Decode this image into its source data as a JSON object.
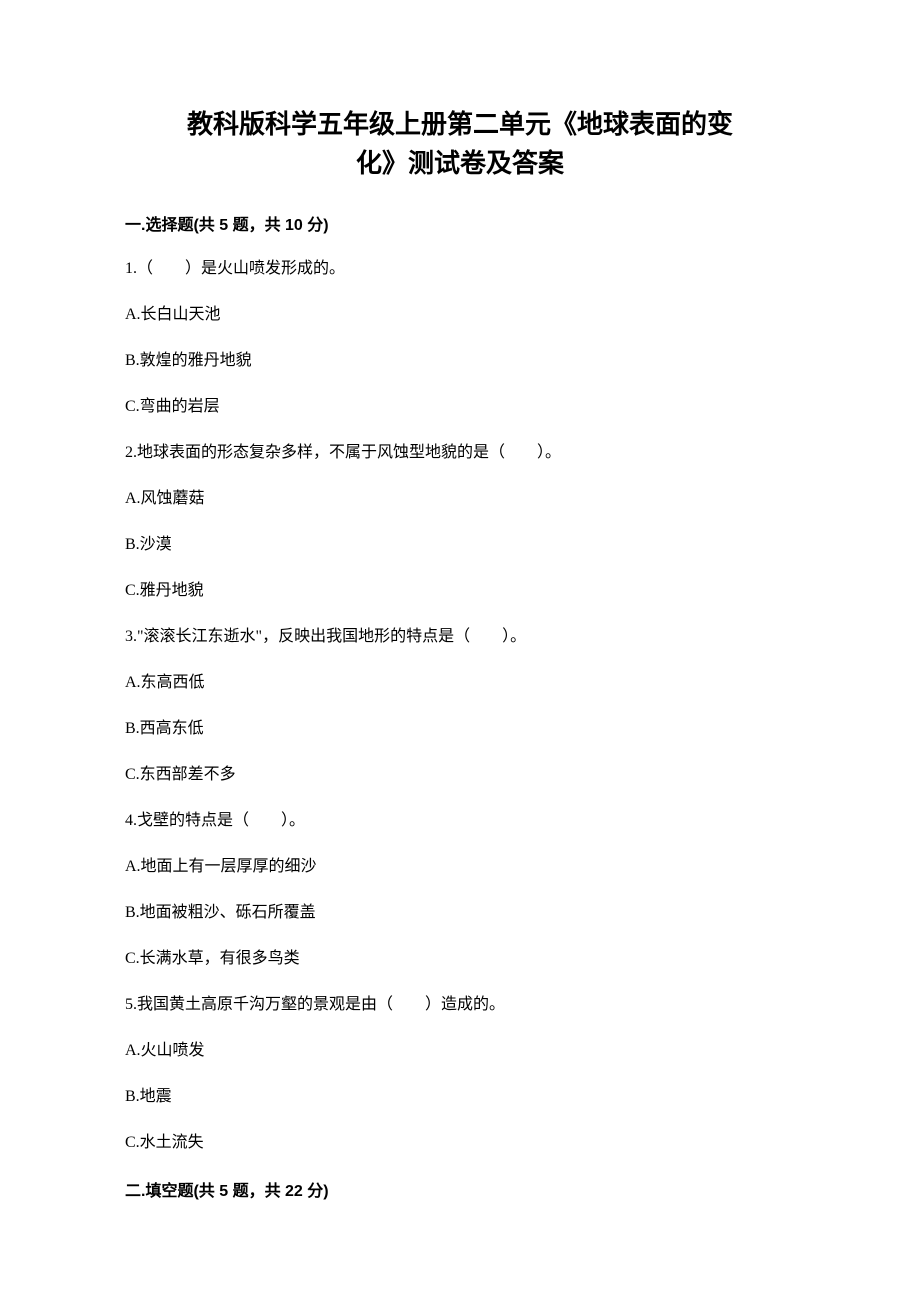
{
  "title": {
    "line1": "教科版科学五年级上册第二单元《地球表面的变",
    "line2": "化》测试卷及答案"
  },
  "section1": {
    "header": "一.选择题(共 5 题，共 10 分)",
    "q1": {
      "stem": "1.（　　）是火山喷发形成的。",
      "a": "A.长白山天池",
      "b": "B.敦煌的雅丹地貌",
      "c": "C.弯曲的岩层"
    },
    "q2": {
      "stem": "2.地球表面的形态复杂多样，不属于风蚀型地貌的是（　　）。",
      "a": "A.风蚀蘑菇",
      "b": "B.沙漠",
      "c": "C.雅丹地貌"
    },
    "q3": {
      "stem": "3.\"滚滚长江东逝水\"，反映出我国地形的特点是（　　）。",
      "a": "A.东高西低",
      "b": "B.西高东低",
      "c": "C.东西部差不多"
    },
    "q4": {
      "stem": "4.戈壁的特点是（　　）。",
      "a": "A.地面上有一层厚厚的细沙",
      "b": "B.地面被粗沙、砾石所覆盖",
      "c": "C.长满水草，有很多鸟类"
    },
    "q5": {
      "stem": "5.我国黄土高原千沟万壑的景观是由（　　）造成的。",
      "a": "A.火山喷发",
      "b": "B.地震",
      "c": "C.水土流失"
    }
  },
  "section2": {
    "header": "二.填空题(共 5 题，共 22 分)"
  }
}
